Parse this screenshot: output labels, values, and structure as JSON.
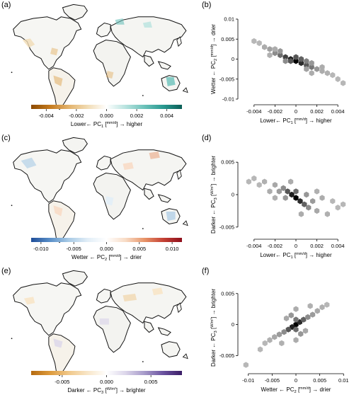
{
  "panels": [
    {
      "id": "a",
      "label": "(a)"
    },
    {
      "id": "b",
      "label": "(b)"
    },
    {
      "id": "c",
      "label": "(c)"
    },
    {
      "id": "d",
      "label": "(d)"
    },
    {
      "id": "e",
      "label": "(e)"
    },
    {
      "id": "f",
      "label": "(f)"
    }
  ],
  "colorbars": [
    {
      "panel": "a",
      "ticks": [
        "-0.004",
        "-0.002",
        "0.000",
        "0.002",
        "0.004"
      ],
      "tick_values": [
        -0.004,
        -0.002,
        0.0,
        0.002,
        0.004
      ],
      "range": [
        -0.005,
        0.005
      ],
      "colors": [
        "#8c4a00",
        "#c47a1e",
        "#e3b36c",
        "#f1dcb5",
        "#ffffff",
        "#b9e3df",
        "#6cc2ba",
        "#2a9a91",
        "#0b5e57"
      ],
      "label": {
        "pre": "Lower← PC",
        "sub": "1",
        "unit_num": "mm",
        "unit_den": "d",
        "post": "→ higher"
      }
    },
    {
      "panel": "c",
      "ticks": [
        "-0.010",
        "-0.005",
        "0.000",
        "0.005",
        "0.010"
      ],
      "tick_values": [
        -0.01,
        -0.005,
        0.0,
        0.005,
        0.01
      ],
      "range": [
        -0.0115,
        0.0115
      ],
      "colors": [
        "#1f4e99",
        "#5a8fc8",
        "#a9cbe6",
        "#e2eef7",
        "#ffffff",
        "#f8dcc6",
        "#e8956a",
        "#c54235",
        "#8e0f1c"
      ],
      "label": {
        "pre": "Wetter ← PC",
        "sub": "2",
        "unit_num": "mm",
        "unit_den": "d",
        "post": "→ drier"
      }
    },
    {
      "panel": "e",
      "ticks": [
        "-0.005",
        "0.000",
        "0.005"
      ],
      "tick_values": [
        -0.005,
        0.0,
        0.005
      ],
      "range": [
        -0.0085,
        0.0085
      ],
      "colors": [
        "#b56a0f",
        "#dd9a3c",
        "#f0c88a",
        "#f8e6c8",
        "#ffffff",
        "#dcd6ea",
        "#a79bca",
        "#6b53a0",
        "#3a1d66"
      ],
      "label": {
        "pre": "Darker ← PC",
        "sub": "3",
        "unit_num": "W",
        "unit_den": "m²",
        "post": "→ brighter"
      }
    }
  ],
  "chart_data": [
    {
      "panel": "b",
      "type": "heatmap",
      "xlabel": {
        "pre": "Lower← PC",
        "sub": "1",
        "unit_num": "mm",
        "unit_den": "d",
        "post": "→ higher"
      },
      "ylabel": {
        "pre": "Wetter ← PC",
        "sub": "2",
        "unit_num": "mm",
        "unit_den": "d",
        "post": "→ drier"
      },
      "xlim": [
        -0.005,
        0.005
      ],
      "ylim": [
        -0.01,
        0.01
      ],
      "xticks": [
        -0.004,
        -0.002,
        0,
        0.002,
        0.004
      ],
      "xtick_labels": [
        "-0.004",
        "-0.002",
        "0",
        "0.002",
        "0.004"
      ],
      "yticks": [
        -0.01,
        -0.005,
        0,
        0.005,
        0.01
      ],
      "ytick_labels": [
        "-0.01",
        "-0.005",
        "0",
        "0.005",
        "0.01"
      ],
      "points": [
        {
          "x": 0.0,
          "y": -0.0005,
          "density": 1.0
        },
        {
          "x": -0.0005,
          "y": 0.0,
          "density": 0.85
        },
        {
          "x": 0.0005,
          "y": -0.001,
          "density": 0.8
        },
        {
          "x": -0.001,
          "y": 0.0005,
          "density": 0.7
        },
        {
          "x": 0.001,
          "y": -0.0015,
          "density": 0.6
        },
        {
          "x": -0.0015,
          "y": 0.001,
          "density": 0.5
        },
        {
          "x": 0.0015,
          "y": -0.002,
          "density": 0.45
        },
        {
          "x": 0.0,
          "y": 0.0005,
          "density": 0.6
        },
        {
          "x": -0.0005,
          "y": -0.0005,
          "density": 0.6
        },
        {
          "x": 0.0005,
          "y": 0.0,
          "density": 0.55
        },
        {
          "x": -0.002,
          "y": 0.0015,
          "density": 0.35
        },
        {
          "x": 0.002,
          "y": -0.0025,
          "density": 0.3
        },
        {
          "x": -0.0025,
          "y": 0.0025,
          "density": 0.25
        },
        {
          "x": -0.003,
          "y": 0.003,
          "density": 0.2
        },
        {
          "x": -0.0035,
          "y": 0.004,
          "density": 0.15
        },
        {
          "x": -0.004,
          "y": 0.0045,
          "density": 0.15
        },
        {
          "x": 0.0025,
          "y": -0.003,
          "density": 0.2
        },
        {
          "x": 0.003,
          "y": -0.0035,
          "density": 0.18
        },
        {
          "x": 0.0035,
          "y": -0.004,
          "density": 0.15
        },
        {
          "x": 0.004,
          "y": -0.005,
          "density": 0.15
        },
        {
          "x": 0.0045,
          "y": -0.006,
          "density": 0.15
        },
        {
          "x": -0.0015,
          "y": 0.002,
          "density": 0.3
        },
        {
          "x": 0.001,
          "y": -0.0005,
          "density": 0.4
        },
        {
          "x": -0.001,
          "y": -0.0005,
          "density": 0.35
        },
        {
          "x": 0.0015,
          "y": -0.001,
          "density": 0.3
        },
        {
          "x": -0.002,
          "y": 0.0025,
          "density": 0.2
        },
        {
          "x": 0.0015,
          "y": -0.0035,
          "density": 0.2
        },
        {
          "x": 0.0025,
          "y": -0.002,
          "density": 0.2
        },
        {
          "x": -0.0025,
          "y": 0.001,
          "density": 0.18
        },
        {
          "x": 0.001,
          "y": -0.0025,
          "density": 0.25
        }
      ]
    },
    {
      "panel": "d",
      "type": "heatmap",
      "xlabel": {
        "pre": "Lower← PC",
        "sub": "1",
        "unit_num": "mm",
        "unit_den": "d",
        "post": "→ higher"
      },
      "ylabel": {
        "pre": "Darker ← PC",
        "sub": "3",
        "unit_num": "W",
        "unit_den": "m²",
        "post": "→ brighter"
      },
      "xlim": [
        -0.005,
        0.005
      ],
      "ylim": [
        -0.006,
        0.006
      ],
      "xticks": [
        -0.004,
        -0.002,
        0,
        0.002,
        0.004
      ],
      "xtick_labels": [
        "-0.004",
        "-0.002",
        "0",
        "0.002",
        "0.004"
      ],
      "yticks": [
        -0.005,
        0,
        0.005
      ],
      "ytick_labels": [
        "-0.005",
        "0",
        "0.005"
      ],
      "points": [
        {
          "x": 0.0,
          "y": -0.0005,
          "density": 1.0
        },
        {
          "x": -0.0004,
          "y": 0.0,
          "density": 0.85
        },
        {
          "x": 0.0004,
          "y": -0.001,
          "density": 0.8
        },
        {
          "x": -0.0008,
          "y": 0.0005,
          "density": 0.6
        },
        {
          "x": 0.0008,
          "y": -0.0015,
          "density": 0.55
        },
        {
          "x": 0.0,
          "y": 0.0005,
          "density": 0.5
        },
        {
          "x": -0.0012,
          "y": 0.001,
          "density": 0.35
        },
        {
          "x": 0.0012,
          "y": -0.002,
          "density": 0.35
        },
        {
          "x": -0.0016,
          "y": 0.0005,
          "density": 0.28
        },
        {
          "x": 0.0016,
          "y": -0.001,
          "density": 0.28
        },
        {
          "x": -0.002,
          "y": 0.0015,
          "density": 0.22
        },
        {
          "x": 0.002,
          "y": -0.0025,
          "density": 0.22
        },
        {
          "x": -0.0025,
          "y": 0.0005,
          "density": 0.2
        },
        {
          "x": 0.0025,
          "y": -0.0005,
          "density": 0.2
        },
        {
          "x": -0.003,
          "y": 0.002,
          "density": 0.18
        },
        {
          "x": 0.003,
          "y": -0.003,
          "density": 0.18
        },
        {
          "x": -0.0035,
          "y": 0.0015,
          "density": 0.15
        },
        {
          "x": 0.0035,
          "y": -0.001,
          "density": 0.15
        },
        {
          "x": -0.004,
          "y": 0.0025,
          "density": 0.15
        },
        {
          "x": 0.004,
          "y": -0.002,
          "density": 0.15
        },
        {
          "x": -0.0045,
          "y": 0.002,
          "density": 0.15
        },
        {
          "x": 0.0045,
          "y": -0.0015,
          "density": 0.15
        },
        {
          "x": -0.001,
          "y": -0.0005,
          "density": 0.3
        },
        {
          "x": 0.001,
          "y": 0.0,
          "density": 0.3
        },
        {
          "x": 0.0005,
          "y": -0.003,
          "density": 0.2
        },
        {
          "x": -0.0005,
          "y": 0.002,
          "density": 0.2
        },
        {
          "x": -0.002,
          "y": -0.0005,
          "density": 0.18
        },
        {
          "x": 0.002,
          "y": 0.0005,
          "density": 0.18
        }
      ]
    },
    {
      "panel": "f",
      "type": "heatmap",
      "xlabel": {
        "pre": "Wetter ← PC",
        "sub": "2",
        "unit_num": "mm",
        "unit_den": "d",
        "post": "→ drier"
      },
      "ylabel": {
        "pre": "Darker ← PC",
        "sub": "3",
        "unit_num": "W",
        "unit_den": "m²",
        "post": "→ brighter"
      },
      "xlim": [
        -0.011,
        0.011
      ],
      "ylim": [
        -0.007,
        0.006
      ],
      "xticks": [
        -0.01,
        -0.005,
        0,
        0.005,
        0.01
      ],
      "xtick_labels": [
        "-0.01",
        "-0.005",
        "0",
        "0.005",
        "0.01"
      ],
      "yticks": [
        -0.005,
        0,
        0.005
      ],
      "ytick_labels": [
        "-0.005",
        "0",
        "0.005"
      ],
      "points": [
        {
          "x": 0.0,
          "y": 0.0,
          "density": 1.0
        },
        {
          "x": -0.0008,
          "y": -0.0004,
          "density": 0.85
        },
        {
          "x": 0.0008,
          "y": 0.0004,
          "density": 0.8
        },
        {
          "x": -0.0016,
          "y": -0.0008,
          "density": 0.6
        },
        {
          "x": 0.0016,
          "y": 0.0008,
          "density": 0.55
        },
        {
          "x": 0.0,
          "y": -0.0008,
          "density": 0.5
        },
        {
          "x": 0.0,
          "y": 0.0008,
          "density": 0.45
        },
        {
          "x": -0.0025,
          "y": -0.0012,
          "density": 0.35
        },
        {
          "x": 0.0025,
          "y": 0.0012,
          "density": 0.35
        },
        {
          "x": -0.0035,
          "y": -0.0016,
          "density": 0.28
        },
        {
          "x": 0.0035,
          "y": 0.0016,
          "density": 0.28
        },
        {
          "x": -0.0045,
          "y": -0.002,
          "density": 0.22
        },
        {
          "x": 0.0045,
          "y": 0.0022,
          "density": 0.22
        },
        {
          "x": -0.0055,
          "y": -0.0025,
          "density": 0.18
        },
        {
          "x": 0.0055,
          "y": 0.0028,
          "density": 0.18
        },
        {
          "x": -0.0065,
          "y": -0.003,
          "density": 0.15
        },
        {
          "x": 0.0065,
          "y": 0.0032,
          "density": 0.15
        },
        {
          "x": -0.0075,
          "y": -0.004,
          "density": 0.15
        },
        {
          "x": 0.0,
          "y": 0.0025,
          "density": 0.2
        },
        {
          "x": 0.0,
          "y": -0.0025,
          "density": 0.2
        },
        {
          "x": -0.001,
          "y": 0.0015,
          "density": 0.3
        },
        {
          "x": 0.001,
          "y": -0.0015,
          "density": 0.3
        },
        {
          "x": 0.002,
          "y": -0.001,
          "density": 0.22
        },
        {
          "x": -0.002,
          "y": 0.001,
          "density": 0.22
        },
        {
          "x": 0.003,
          "y": 0.003,
          "density": 0.18
        },
        {
          "x": -0.003,
          "y": -0.003,
          "density": 0.18
        },
        {
          "x": -0.0105,
          "y": -0.0065,
          "density": 0.15
        }
      ]
    }
  ]
}
